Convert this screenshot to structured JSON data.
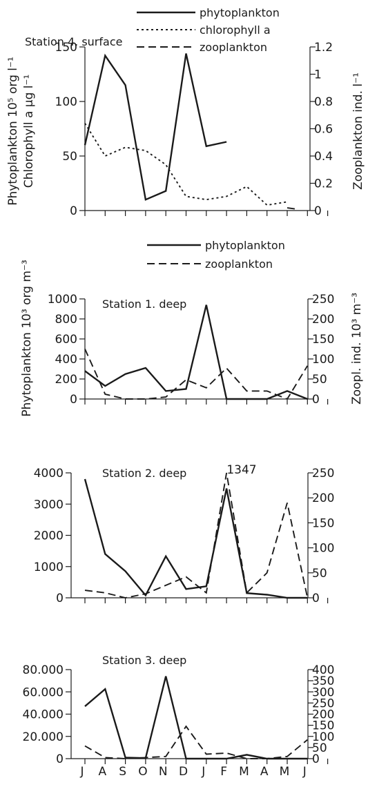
{
  "chart_data": [
    {
      "type": "line",
      "title": "Station 4. surface",
      "categories": [
        "J",
        "A",
        "S",
        "O",
        "N",
        "D",
        "J",
        "F",
        "M",
        "A",
        "M",
        "J"
      ],
      "ylabel_left": [
        "Phytoplankton 10⁵ org l⁻¹",
        "Chlorophyll a µg l⁻¹"
      ],
      "ylabel_right": "Zooplankton ind. l⁻¹",
      "ylim_left": [
        0,
        150
      ],
      "ylim_right": [
        0,
        1.2
      ],
      "yticks_left": [
        0,
        50,
        100,
        150
      ],
      "yticks_right": [
        0,
        0.2,
        0.4,
        0.6,
        0.8,
        1,
        1.2
      ],
      "legend": [
        "phytoplankton",
        "chlorophyll a",
        "zooplankton"
      ],
      "series": [
        {
          "name": "phytoplankton",
          "axis": "left",
          "style": "solid",
          "x": [
            0,
            1,
            2,
            3,
            4,
            5,
            6,
            7
          ],
          "values": [
            60,
            142,
            115,
            10,
            18,
            144,
            59,
            63
          ]
        },
        {
          "name": "chlorophyll a",
          "axis": "left",
          "style": "dotted",
          "x": [
            0,
            1,
            2,
            3,
            4,
            5,
            6,
            7,
            8,
            9,
            10
          ],
          "values": [
            80,
            50,
            58,
            55,
            42,
            13,
            10,
            13,
            22,
            5,
            8
          ]
        },
        {
          "name": "zooplankton",
          "axis": "right",
          "style": "dashed",
          "x": [
            10,
            10.5
          ],
          "values": [
            0.02,
            0.01
          ]
        }
      ]
    },
    {
      "type": "line",
      "title": "Station 1. deep",
      "categories": [
        "J",
        "A",
        "S",
        "O",
        "N",
        "D",
        "J",
        "F",
        "M",
        "A",
        "M",
        "J"
      ],
      "ylabel_left": "Phytoplankton 10³ org m⁻³",
      "ylabel_right": "Zoopl. ind. 10³ m⁻³",
      "ylim_left": [
        0,
        1000
      ],
      "ylim_right": [
        0,
        250
      ],
      "yticks_left": [
        0,
        200,
        400,
        600,
        800,
        1000
      ],
      "yticks_right": [
        0,
        50,
        100,
        150,
        200,
        250
      ],
      "legend": [
        "phytoplankton",
        "zooplankton"
      ],
      "series": [
        {
          "name": "phytoplankton",
          "axis": "left",
          "style": "solid",
          "x": [
            0,
            1,
            2,
            3,
            4,
            5,
            6,
            7,
            8,
            9,
            10,
            11
          ],
          "values": [
            280,
            130,
            250,
            310,
            80,
            100,
            940,
            0,
            0,
            0,
            80,
            0
          ]
        },
        {
          "name": "zooplankton",
          "axis": "right",
          "style": "dashed",
          "x": [
            0,
            1,
            2,
            3,
            4,
            5,
            6,
            7,
            8,
            9,
            10,
            11
          ],
          "values": [
            125,
            12,
            0,
            0,
            5,
            48,
            28,
            77,
            20,
            20,
            0,
            83
          ]
        }
      ]
    },
    {
      "type": "line",
      "title": "Station 2. deep",
      "categories": [
        "J",
        "A",
        "S",
        "O",
        "N",
        "D",
        "J",
        "F",
        "M",
        "A",
        "M",
        "J"
      ],
      "ylim_left": [
        0,
        4000
      ],
      "ylim_right": [
        0,
        250
      ],
      "yticks_left": [
        0,
        1000,
        2000,
        3000,
        4000
      ],
      "yticks_right": [
        0,
        50,
        100,
        150,
        200,
        250
      ],
      "annotation": "1347",
      "series": [
        {
          "name": "phytoplankton",
          "axis": "left",
          "style": "solid",
          "x": [
            0,
            1,
            2,
            3,
            4,
            5,
            6,
            7,
            8,
            9,
            10,
            11
          ],
          "values": [
            3800,
            1400,
            850,
            80,
            1330,
            280,
            370,
            3500,
            150,
            100,
            0,
            0
          ]
        },
        {
          "name": "zooplankton",
          "axis": "right",
          "style": "dashed",
          "x": [
            0,
            1,
            2,
            3,
            4,
            5,
            6,
            7,
            8,
            9,
            10,
            11
          ],
          "values": [
            15,
            10,
            0,
            8,
            25,
            42,
            10,
            250,
            10,
            50,
            190,
            0
          ]
        }
      ]
    },
    {
      "type": "line",
      "title": "Station 3. deep",
      "categories": [
        "J",
        "A",
        "S",
        "O",
        "N",
        "D",
        "J",
        "F",
        "M",
        "A",
        "M",
        "J"
      ],
      "ylim_left": [
        0,
        80000
      ],
      "ylim_right": [
        0,
        400
      ],
      "yticks_left": [
        0,
        20000,
        40000,
        60000,
        80000
      ],
      "yticks_left_labels": [
        "0",
        "20.000",
        "40.000",
        "60.000",
        "80.000"
      ],
      "yticks_right": [
        0,
        50,
        100,
        150,
        200,
        250,
        300,
        350,
        400
      ],
      "series": [
        {
          "name": "phytoplankton",
          "axis": "left",
          "style": "solid",
          "x": [
            0,
            1,
            2,
            3,
            4,
            5,
            6,
            7,
            8,
            9,
            10,
            11
          ],
          "values": [
            47000,
            62500,
            1000,
            500,
            74000,
            0,
            0,
            0,
            3500,
            0,
            0,
            0
          ]
        },
        {
          "name": "zooplankton",
          "axis": "right",
          "style": "dashed",
          "x": [
            0,
            1,
            2,
            3,
            4,
            5,
            6,
            7,
            8,
            9,
            10,
            11
          ],
          "values": [
            57,
            5,
            0,
            5,
            10,
            145,
            20,
            25,
            0,
            0,
            10,
            85
          ]
        }
      ]
    }
  ]
}
